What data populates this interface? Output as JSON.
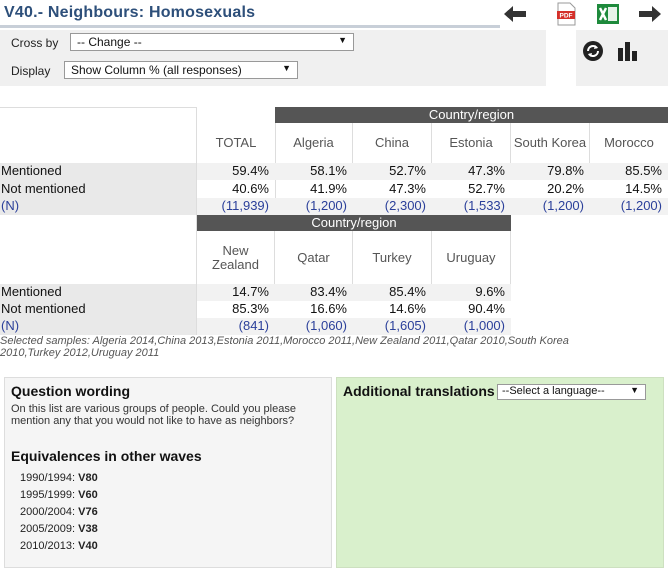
{
  "title": "V40.- Neighbours: Homosexuals",
  "toolbar": {
    "icons": [
      "back-arrow-icon",
      "pdf-icon",
      "excel-icon",
      "forward-arrow-icon"
    ],
    "pdf_label": "PDF"
  },
  "controls": {
    "crossby_label": "Cross by",
    "crossby_value": "-- Change --",
    "display_label": "Display",
    "display_value": "Show Column % (all responses)"
  },
  "table1": {
    "band_label": "Country/region",
    "total_label": "TOTAL",
    "columns": [
      "Algeria",
      "China",
      "Estonia",
      "South Korea",
      "Morocco"
    ],
    "rows": [
      {
        "label": "Mentioned",
        "total": "59.4%",
        "values": [
          "58.1%",
          "52.7%",
          "47.3%",
          "79.8%",
          "85.5%"
        ]
      },
      {
        "label": "Not mentioned",
        "total": "40.6%",
        "values": [
          "41.9%",
          "47.3%",
          "52.7%",
          "20.2%",
          "14.5%"
        ]
      },
      {
        "label": "(N)",
        "total": "(11,939)",
        "values": [
          "(1,200)",
          "(2,300)",
          "(1,533)",
          "(1,200)",
          "(1,200)"
        ]
      }
    ]
  },
  "table2": {
    "band_label": "Country/region",
    "columns": [
      "New Zealand",
      "Qatar",
      "Turkey",
      "Uruguay"
    ],
    "rows": [
      {
        "label": "Mentioned",
        "values": [
          "14.7%",
          "83.4%",
          "85.4%",
          "9.6%"
        ]
      },
      {
        "label": "Not mentioned",
        "values": [
          "85.3%",
          "16.6%",
          "14.6%",
          "90.4%"
        ]
      },
      {
        "label": "(N)",
        "values": [
          "(841)",
          "(1,060)",
          "(1,605)",
          "(1,000)"
        ]
      }
    ]
  },
  "samples_line1": "Selected samples: Algeria 2014,China 2013,Estonia 2011,Morocco 2011,New Zealand 2011,Qatar 2010,South Korea",
  "samples_line2": "2010,Turkey 2012,Uruguay 2011",
  "question": {
    "heading": "Question wording",
    "text": "On this list are various groups of people. Could you please mention any that you would not like to have as neighbors?"
  },
  "equivalences": {
    "heading": "Equivalences in other waves",
    "waves": [
      {
        "period": "1990/1994:",
        "var": "V80"
      },
      {
        "period": "1995/1999:",
        "var": "V60"
      },
      {
        "period": "2000/2004:",
        "var": "V76"
      },
      {
        "period": "2005/2009:",
        "var": "V38"
      },
      {
        "period": "2010/2013:",
        "var": "V40"
      }
    ]
  },
  "translations": {
    "heading": "Additional translations",
    "select_value": "--Select a language--"
  },
  "colors": {
    "title": "#2d4f7a",
    "band": "#555555",
    "n_values": "#2a3f9a",
    "translations_bg": "#d9f0cc"
  }
}
